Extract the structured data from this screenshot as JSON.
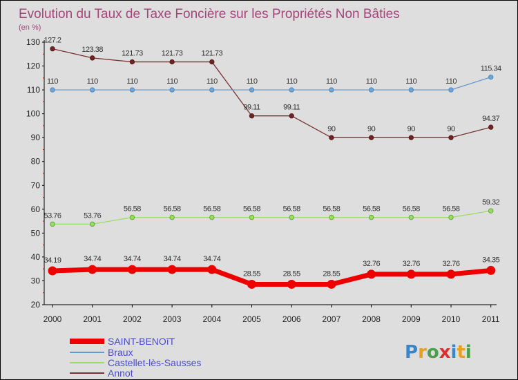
{
  "chart_data": {
    "type": "line",
    "title": "Evolution du Taux de Taxe Foncière sur les Propriétés Non Bâties",
    "subtitle": "(en %)",
    "x": [
      "2000",
      "2001",
      "2002",
      "2003",
      "2004",
      "2005",
      "2006",
      "2007",
      "2008",
      "2009",
      "2010",
      "2011"
    ],
    "ylim": [
      20,
      130
    ],
    "yticks": [
      20,
      30,
      40,
      50,
      60,
      70,
      80,
      90,
      100,
      110,
      120,
      130
    ],
    "grid": false,
    "legend_position": "bottom-left",
    "series": [
      {
        "name": "SAINT-BENOîT",
        "color": "#ee0000",
        "values": [
          34.19,
          34.74,
          34.74,
          34.74,
          34.74,
          28.55,
          28.55,
          28.55,
          32.76,
          32.76,
          32.76,
          34.35
        ],
        "labels": [
          "34.19",
          "34.74",
          "34.74",
          "34.74",
          "34.74",
          "28.55",
          "28.55",
          "28.55",
          "32.76",
          "32.76",
          "32.76",
          "34.35"
        ]
      },
      {
        "name": "Braux",
        "color": "#6699cc",
        "values": [
          110,
          110,
          110,
          110,
          110,
          110,
          110,
          110,
          110,
          110,
          110,
          115.34
        ],
        "labels": [
          "110",
          "110",
          "110",
          "110",
          "110",
          "110",
          "110",
          "110",
          "110",
          "110",
          "110",
          "115.34"
        ]
      },
      {
        "name": "Castellet-lès-Sausses",
        "color": "#99dd66",
        "values": [
          53.76,
          53.76,
          56.58,
          56.58,
          56.58,
          56.58,
          56.58,
          56.58,
          56.58,
          56.58,
          56.58,
          59.32
        ],
        "labels": [
          "53.76",
          "53.76",
          "56.58",
          "56.58",
          "56.58",
          "56.58",
          "56.58",
          "56.58",
          "56.58",
          "56.58",
          "56.58",
          "59.32"
        ]
      },
      {
        "name": "Annot",
        "color": "#773333",
        "values": [
          127.2,
          123.38,
          121.73,
          121.73,
          121.73,
          99.11,
          99.11,
          90,
          90,
          90,
          90,
          94.37
        ],
        "labels": [
          "127.2",
          "123.38",
          "121.73",
          "121.73",
          "121.73",
          "99.11",
          "99.11",
          "90",
          "90",
          "90",
          "90",
          "94.37"
        ]
      }
    ]
  },
  "logo": {
    "text": "Proxiti"
  }
}
